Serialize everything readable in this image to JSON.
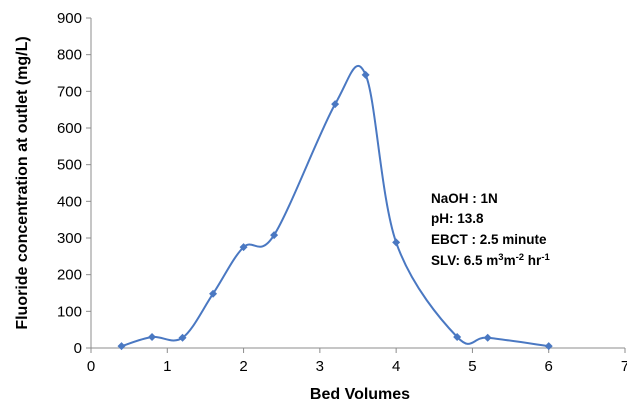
{
  "chart_data": {
    "type": "line",
    "smooth": true,
    "title": "",
    "xlabel": "Bed Volumes",
    "ylabel": "Fluoride concentration at outlet (mg/L)",
    "xlim": [
      0,
      7
    ],
    "ylim": [
      0,
      900
    ],
    "xticks": [
      "0",
      "1",
      "2",
      "3",
      "4",
      "5",
      "6",
      "7"
    ],
    "yticks": [
      "0",
      "100",
      "200",
      "300",
      "400",
      "500",
      "600",
      "700",
      "800",
      "900"
    ],
    "grid": false,
    "legend": "none",
    "series": [
      {
        "color": "#4a78c2",
        "marker": "diamond",
        "x": [
          0.4,
          0.8,
          1.2,
          1.6,
          2.0,
          2.4,
          3.2,
          3.6,
          4.0,
          4.8,
          5.2,
          6.0
        ],
        "y": [
          5,
          30,
          28,
          148,
          275,
          308,
          665,
          745,
          288,
          30,
          28,
          5
        ]
      }
    ],
    "annotations": [
      {
        "label": "NaOH : 1N"
      },
      {
        "label": "pH: 13.8"
      },
      {
        "label": "EBCT : 2.5 minute"
      },
      {
        "label": "SLV: 6.5 m",
        "sup1": "3",
        "mid": "m",
        "sup2": "-2",
        "tail": " hr",
        "sup3": "-1"
      }
    ]
  }
}
